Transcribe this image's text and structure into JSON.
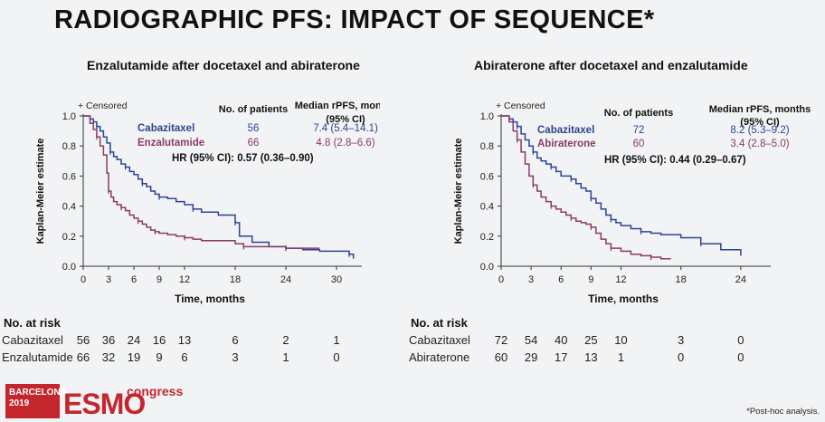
{
  "slide": {
    "title": "RADIOGRAPHIC PFS: IMPACT OF SEQUENCE*",
    "footnote": "*Post-hoc analysis.",
    "logo": {
      "city_line1": "BARCELONA",
      "city_line2": "2019",
      "brand": "ESMO",
      "tag": "congress"
    }
  },
  "colors": {
    "cabazitaxel": "#2d4494",
    "comparator": "#8c3a66"
  },
  "chart_data": [
    {
      "type": "line",
      "title": "Enzalutamide after docetaxel and abiraterone",
      "xlabel": "Time, months",
      "ylabel": "Kaplan-Meier estimate",
      "xlim": [
        0,
        33
      ],
      "ylim": [
        0,
        1.0
      ],
      "x_ticks": [
        0,
        3,
        6,
        9,
        12,
        18,
        24,
        30
      ],
      "y_ticks": [
        "0.0",
        "0.2",
        "0.4",
        "0.6",
        "0.8",
        "1.0"
      ],
      "censored_label": "+ Censored",
      "table_headers": {
        "patients": "No. of patients",
        "median_line1": "Median rPFS, months",
        "median_line2": "(95% CI)"
      },
      "hr_text": "HR (95% CI): 0.57 (0.36–0.90)",
      "series": [
        {
          "name": "Cabazitaxel",
          "color_key": "cabazitaxel",
          "patients": "56",
          "median": "7.4 (5.4–14.1)",
          "x": [
            0,
            0.8,
            1.2,
            1.6,
            2.0,
            2.4,
            2.8,
            3.2,
            3.6,
            4.0,
            4.5,
            5.0,
            5.5,
            6.0,
            6.5,
            7.0,
            7.5,
            8.0,
            8.5,
            9.0,
            10.0,
            11.0,
            12.0,
            13.0,
            14.0,
            15.0,
            16.0,
            18.0,
            18.5,
            20.0,
            22.0,
            24.0,
            26.0,
            28.0,
            30.0,
            31.5,
            32.0
          ],
          "y": [
            1.0,
            0.98,
            0.96,
            0.93,
            0.9,
            0.86,
            0.82,
            0.76,
            0.73,
            0.71,
            0.68,
            0.66,
            0.63,
            0.61,
            0.58,
            0.55,
            0.53,
            0.5,
            0.48,
            0.46,
            0.45,
            0.43,
            0.41,
            0.38,
            0.36,
            0.36,
            0.34,
            0.29,
            0.2,
            0.16,
            0.13,
            0.12,
            0.11,
            0.1,
            0.1,
            0.08,
            0.05
          ]
        },
        {
          "name": "Enzalutamide",
          "color_key": "comparator",
          "patients": "66",
          "median": "4.8 (2.8–6.6)",
          "x": [
            0,
            0.8,
            1.2,
            1.6,
            2.0,
            2.4,
            2.8,
            3.0,
            3.3,
            3.6,
            4.0,
            4.5,
            5.0,
            5.5,
            6.0,
            6.5,
            7.0,
            7.5,
            8.0,
            8.5,
            9.0,
            10.0,
            11.0,
            12.0,
            13.0,
            14.0,
            18.0,
            19.0,
            24.0,
            28.0
          ],
          "y": [
            1.0,
            0.95,
            0.91,
            0.86,
            0.8,
            0.74,
            0.62,
            0.5,
            0.46,
            0.43,
            0.41,
            0.39,
            0.37,
            0.34,
            0.32,
            0.3,
            0.28,
            0.26,
            0.24,
            0.23,
            0.22,
            0.21,
            0.2,
            0.19,
            0.18,
            0.17,
            0.15,
            0.13,
            0.12,
            0.12
          ]
        }
      ],
      "at_risk": {
        "title": "No. at risk",
        "rows": [
          {
            "label": "Cabazitaxel",
            "values": [
              "56",
              "36",
              "24",
              "16",
              "13",
              "6",
              "2",
              "1"
            ]
          },
          {
            "label": "Enzalutamide",
            "values": [
              "66",
              "32",
              "19",
              "9",
              "6",
              "3",
              "1",
              "0"
            ]
          }
        ]
      }
    },
    {
      "type": "line",
      "title": "Abiraterone after docetaxel and enzalutamide",
      "xlabel": "Time, months",
      "ylabel": "Kaplan-Meier estimate",
      "xlim": [
        0,
        27
      ],
      "ylim": [
        0,
        1.0
      ],
      "x_ticks": [
        0,
        3,
        6,
        9,
        12,
        18,
        24
      ],
      "y_ticks": [
        "0.0",
        "0.2",
        "0.4",
        "0.6",
        "0.8",
        "1.0"
      ],
      "censored_label": "+ Censored",
      "table_headers": {
        "patients": "No. of patients",
        "median_line1": "Median rPFS, months",
        "median_line2": "(95% CI)"
      },
      "hr_text": "HR (95% CI): 0.44 (0.29–0.67)",
      "series": [
        {
          "name": "Cabazitaxel",
          "color_key": "cabazitaxel",
          "patients": "72",
          "median": "8.2 (5.3–9.2)",
          "x": [
            0,
            0.8,
            1.2,
            1.6,
            2.0,
            2.4,
            2.8,
            3.2,
            3.6,
            4.0,
            4.5,
            5.0,
            5.5,
            6.0,
            6.5,
            7.0,
            7.5,
            8.0,
            8.5,
            9.0,
            9.5,
            10.0,
            10.5,
            11.0,
            11.5,
            12.0,
            13.0,
            14.0,
            15.0,
            16.0,
            18.0,
            20.0,
            22.0,
            24.0
          ],
          "y": [
            1.0,
            0.98,
            0.96,
            0.93,
            0.88,
            0.84,
            0.8,
            0.76,
            0.72,
            0.7,
            0.68,
            0.66,
            0.63,
            0.6,
            0.6,
            0.58,
            0.55,
            0.52,
            0.5,
            0.45,
            0.42,
            0.38,
            0.34,
            0.31,
            0.29,
            0.27,
            0.25,
            0.23,
            0.22,
            0.21,
            0.19,
            0.15,
            0.11,
            0.07
          ]
        },
        {
          "name": "Abiraterone",
          "color_key": "comparator",
          "patients": "60",
          "median": "3.4 (2.8–5.0)",
          "x": [
            0,
            0.8,
            1.2,
            1.6,
            2.0,
            2.4,
            2.8,
            3.2,
            3.6,
            4.0,
            4.5,
            5.0,
            5.5,
            6.0,
            6.5,
            7.0,
            7.5,
            8.0,
            8.5,
            9.0,
            9.5,
            10.0,
            10.5,
            11.0,
            12.0,
            13.0,
            14.0,
            15.0,
            16.0,
            17.0
          ],
          "y": [
            1.0,
            0.96,
            0.9,
            0.84,
            0.76,
            0.68,
            0.6,
            0.54,
            0.5,
            0.46,
            0.43,
            0.4,
            0.38,
            0.36,
            0.34,
            0.32,
            0.3,
            0.29,
            0.28,
            0.26,
            0.22,
            0.18,
            0.15,
            0.12,
            0.1,
            0.08,
            0.07,
            0.06,
            0.05,
            0.05
          ]
        }
      ],
      "at_risk": {
        "title": "No. at risk",
        "rows": [
          {
            "label": "Cabazitaxel",
            "values": [
              "72",
              "54",
              "40",
              "25",
              "10",
              "3",
              "0"
            ]
          },
          {
            "label": "Abiraterone",
            "values": [
              "60",
              "29",
              "17",
              "13",
              "1",
              "0",
              "0"
            ]
          }
        ]
      }
    }
  ]
}
